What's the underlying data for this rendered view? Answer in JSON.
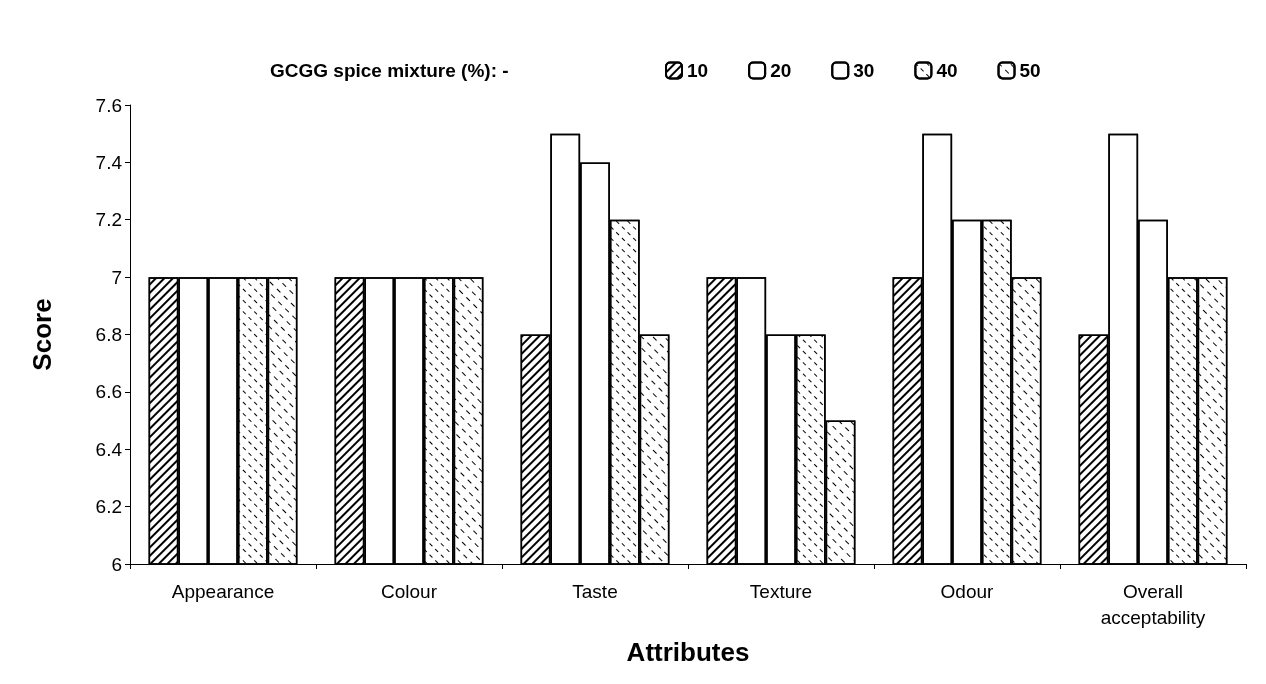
{
  "chart_data": {
    "type": "bar",
    "xlabel": "Attributes",
    "ylabel": "Score",
    "legend_title": "GCGG spice mixture (%): -",
    "categories": [
      "Appearance",
      "Colour",
      "Taste",
      "Texture",
      "Odour",
      "Overall\nacceptability"
    ],
    "series": [
      {
        "name": "10",
        "color": "#ffffff",
        "values": [
          7,
          7,
          6.8,
          7,
          7,
          6.8
        ]
      },
      {
        "name": "20",
        "color": "#ffffff",
        "values": [
          7,
          7,
          7.5,
          7,
          7.5,
          7.5
        ]
      },
      {
        "name": "30",
        "color": "#ffffff",
        "values": [
          7,
          7,
          7.4,
          6.8,
          7.2,
          7.2
        ]
      },
      {
        "name": "40",
        "color": "#ffffff",
        "values": [
          7,
          7,
          7.2,
          6.8,
          7.2,
          7
        ]
      },
      {
        "name": "50",
        "color": "#ffffff",
        "values": [
          7,
          7,
          6.8,
          6.5,
          7,
          7
        ]
      }
    ],
    "ylim": [
      6,
      7.6
    ],
    "yticks": [
      6,
      6.2,
      6.4,
      6.6,
      6.8,
      7,
      7.2,
      7.4,
      7.6
    ],
    "grid": false,
    "legend": "top"
  }
}
